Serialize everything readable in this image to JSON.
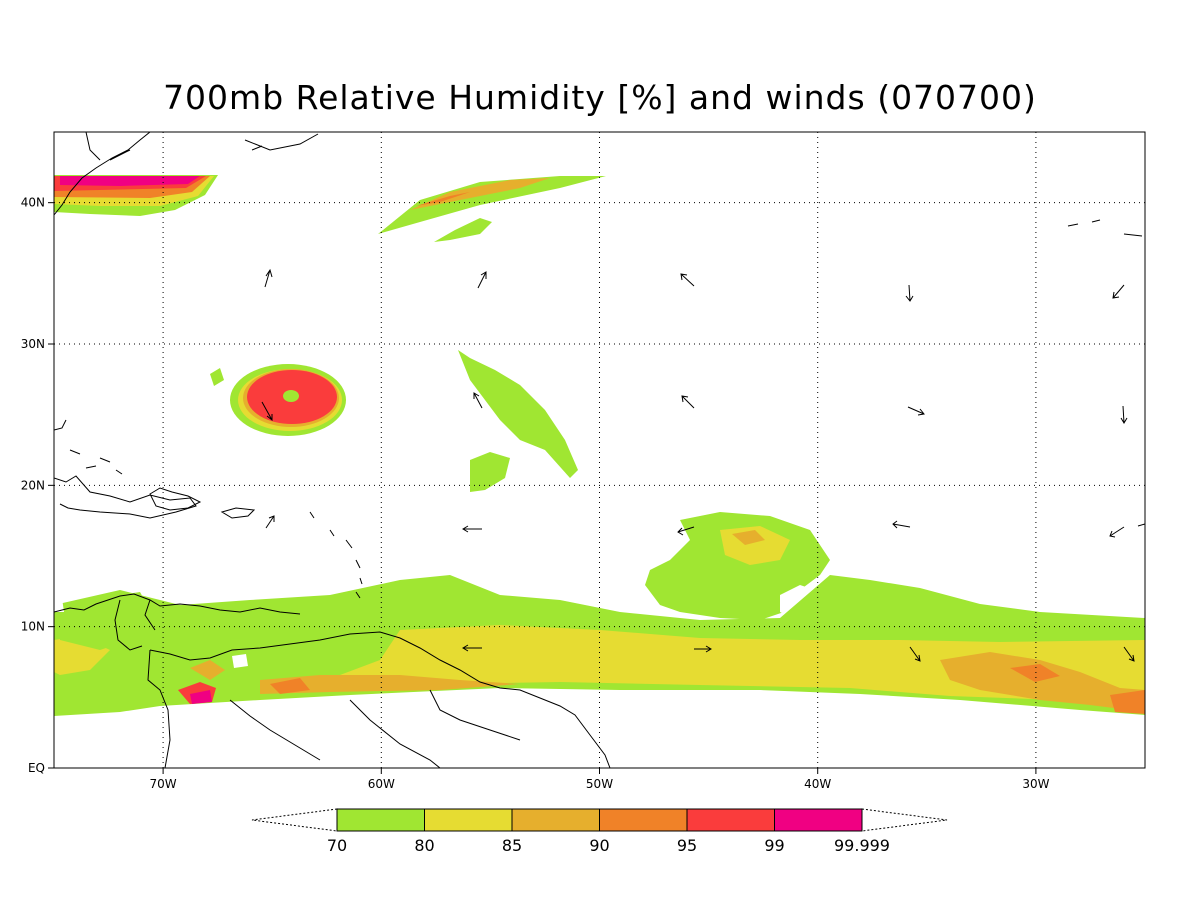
{
  "title": "700mb Relative Humidity [%] and winds (070700)",
  "legend": {
    "colors": [
      "#a0e632",
      "#e6dc32",
      "#e6af2d",
      "#f08228",
      "#fa3c3c",
      "#f00082"
    ],
    "labels": [
      "70",
      "80",
      "85",
      "90",
      "95",
      "99",
      "99.999"
    ]
  },
  "map": {
    "lon_range": [
      -75,
      -25
    ],
    "lat_range": [
      0,
      45
    ],
    "lon_ticks": [
      {
        "value": -70,
        "label": "70W"
      },
      {
        "value": -60,
        "label": "60W"
      },
      {
        "value": -50,
        "label": "50W"
      },
      {
        "value": -40,
        "label": "40W"
      },
      {
        "value": -30,
        "label": "30W"
      }
    ],
    "lat_ticks": [
      {
        "value": 0,
        "label": "EQ"
      },
      {
        "value": 10,
        "label": "10N"
      },
      {
        "value": 20,
        "label": "20N"
      },
      {
        "value": 30,
        "label": "30N"
      },
      {
        "value": 40,
        "label": "40N"
      }
    ],
    "gridlines": true
  }
}
